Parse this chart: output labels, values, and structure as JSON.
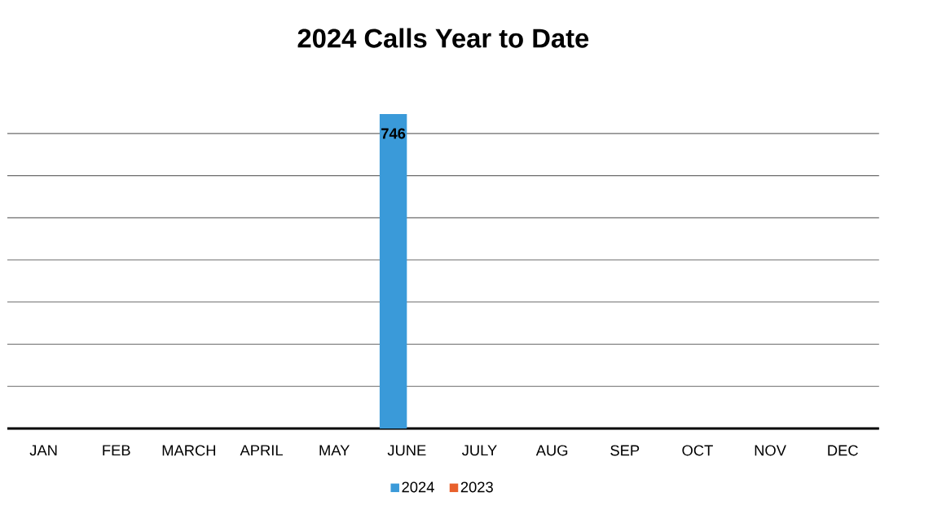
{
  "chart_data": {
    "type": "bar",
    "title": "2024 Calls Year to Date",
    "categories": [
      "JAN",
      "FEB",
      "MARCH",
      "APRIL",
      "MAY",
      "JUNE",
      "JULY",
      "AUG",
      "SEP",
      "OCT",
      "NOV",
      "DEC"
    ],
    "series": [
      {
        "name": "2024",
        "color": "#3a9ad9",
        "values": [
          null,
          null,
          null,
          null,
          null,
          746,
          null,
          null,
          null,
          null,
          null,
          null
        ],
        "value_labels": [
          null,
          null,
          null,
          null,
          null,
          "746",
          null,
          null,
          null,
          null,
          null,
          null
        ]
      },
      {
        "name": "2023",
        "color": "#e8602c",
        "values": [
          null,
          null,
          null,
          null,
          null,
          null,
          null,
          null,
          null,
          null,
          null,
          null
        ]
      }
    ],
    "tick_labels": "x",
    "grid": "y",
    "legend": "bottom"
  }
}
